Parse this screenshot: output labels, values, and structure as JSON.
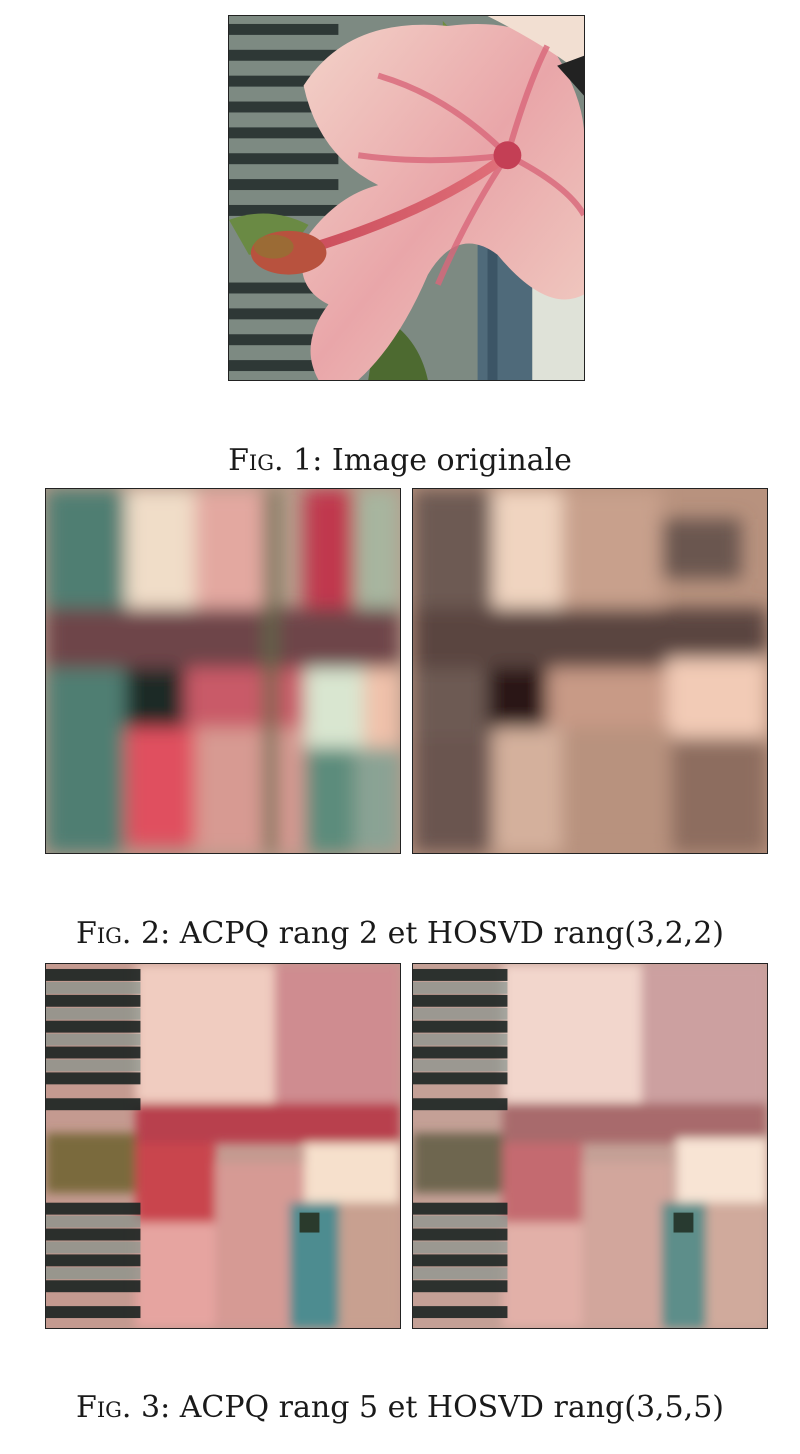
{
  "figures": [
    {
      "label": "Fig.",
      "number": "1",
      "caption": "Image originale"
    },
    {
      "label": "Fig.",
      "number": "2",
      "caption": "ACPQ rang 2 et HOSVD rang(3,2,2)"
    },
    {
      "label": "Fig.",
      "number": "3",
      "caption": "ACPQ rang 5 et HOSVD rang(3,5,5)"
    }
  ],
  "images": {
    "original": "hibiscus-flower-with-shutters",
    "acpq_rank2": "blurred-reconstruction-color",
    "hosvd_322": "blurred-reconstruction-sepia",
    "acpq_rank5": "reconstruction-color",
    "hosvd_355": "reconstruction-muted"
  },
  "colors": {
    "petal_pink": "#e8a2a8",
    "petal_light": "#f4d6cc",
    "center_red": "#d04a5c",
    "shutter_dark": "#2f3a38",
    "shutter_light": "#8c9a92",
    "leaf_green": "#5f7a3c",
    "sepia": "#b8927e"
  }
}
